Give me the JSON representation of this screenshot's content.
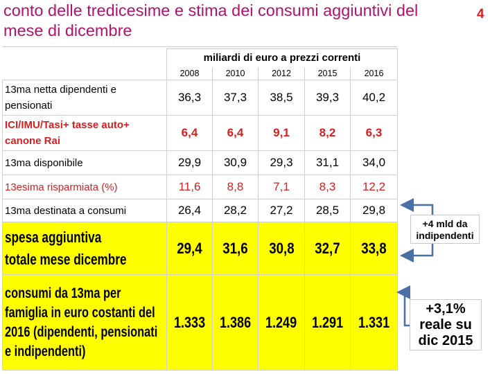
{
  "title": "conto delle tredicesime e stima dei consumi aggiuntivi del mese di dicembre",
  "page_number": "4",
  "table": {
    "unit_header": "miliardi di euro a prezzi correnti",
    "years": [
      "2008",
      "2010",
      "2012",
      "2015",
      "2016"
    ],
    "rows": [
      {
        "label": "13ma netta dipendenti e pensionati",
        "values": [
          "36,3",
          "37,3",
          "38,5",
          "39,3",
          "40,2"
        ]
      },
      {
        "label": "ICI/IMU/Tasi+ tasse auto+ canone Rai",
        "values": [
          "6,4",
          "6,4",
          "9,1",
          "8,2",
          "6,3"
        ]
      },
      {
        "label": "13ma disponibile",
        "values": [
          "29,9",
          "30,9",
          "29,3",
          "31,1",
          "34,0"
        ]
      },
      {
        "label": "13esima risparmiata (%)",
        "values": [
          "11,6",
          "8,8",
          "7,1",
          "8,3",
          "12,2"
        ]
      },
      {
        "label": "13ma destinata a consumi",
        "values": [
          "26,4",
          "28,2",
          "27,2",
          "28,5",
          "29,8"
        ]
      },
      {
        "label": "spesa aggiuntiva totale mese dicembre",
        "values": [
          "29,4",
          "31,6",
          "30,8",
          "32,7",
          "33,8"
        ]
      },
      {
        "label": "consumi da 13ma per famiglia in euro costanti del 2016 (dipendenti, pensionati e indipendenti)",
        "values": [
          "1.333",
          "1.386",
          "1.249",
          "1.291",
          "1.331"
        ]
      }
    ]
  },
  "callouts": {
    "independents": "+4 mld da indipendenti",
    "real_growth": "+3,1% reale su dic 2015"
  },
  "colors": {
    "title": "#b0136e",
    "accent_red": "#d51f20",
    "highlight": "#ffff00",
    "arrow": "#4a6fa5"
  }
}
